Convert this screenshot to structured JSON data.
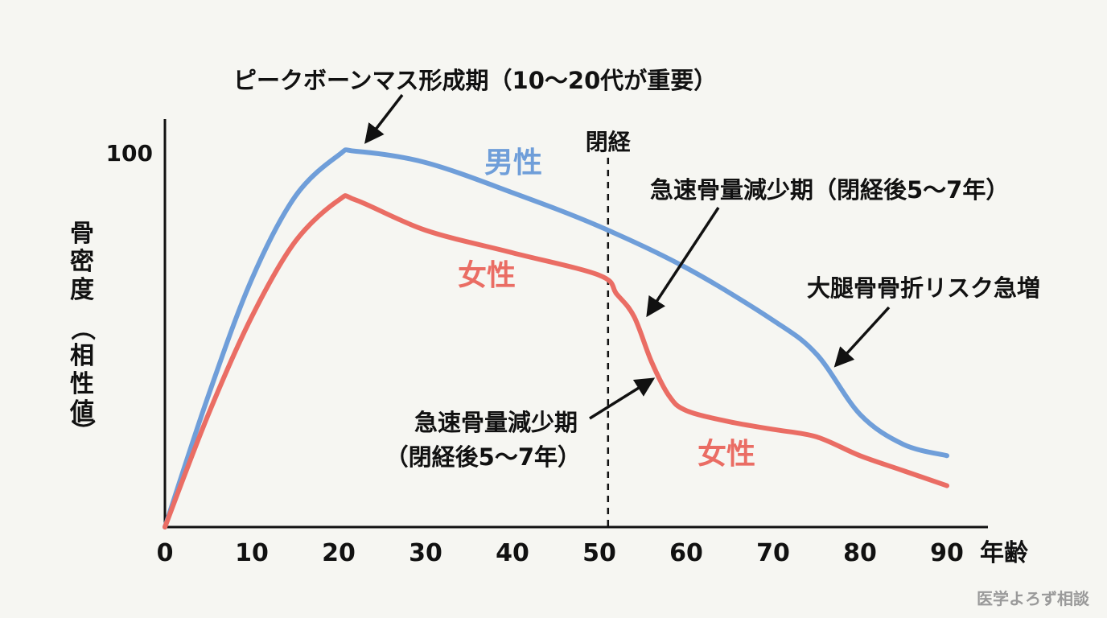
{
  "chart_data": {
    "type": "line",
    "title": "",
    "xlabel": "年齢",
    "ylabel": "骨密度（相性値）",
    "xlim": [
      0,
      90
    ],
    "ylim": [
      0,
      100
    ],
    "x_ticks": [
      "0",
      "10",
      "20",
      "30",
      "40",
      "50",
      "60",
      "70",
      "80",
      "90"
    ],
    "y_ticks": [
      "100"
    ],
    "grid": false,
    "series": [
      {
        "name": "男性",
        "color": "#6f9ed9",
        "points": [
          [
            0,
            0
          ],
          [
            5,
            35
          ],
          [
            10,
            66
          ],
          [
            15,
            88
          ],
          [
            20,
            99
          ],
          [
            22,
            100
          ],
          [
            30,
            97
          ],
          [
            40,
            89
          ],
          [
            50,
            80
          ],
          [
            60,
            69
          ],
          [
            70,
            55
          ],
          [
            75,
            46
          ],
          [
            80,
            30
          ],
          [
            85,
            22
          ],
          [
            90,
            19
          ]
        ]
      },
      {
        "name": "女性",
        "color": "#ea6d64",
        "points": [
          [
            0,
            0
          ],
          [
            5,
            30
          ],
          [
            10,
            56
          ],
          [
            15,
            76
          ],
          [
            20,
            87
          ],
          [
            22,
            87
          ],
          [
            30,
            79
          ],
          [
            40,
            73
          ],
          [
            50,
            67
          ],
          [
            52,
            62
          ],
          [
            54,
            56
          ],
          [
            56,
            44
          ],
          [
            58,
            35
          ],
          [
            60,
            31
          ],
          [
            65,
            28
          ],
          [
            70,
            26
          ],
          [
            75,
            24
          ],
          [
            80,
            19
          ],
          [
            85,
            15
          ],
          [
            90,
            11
          ]
        ]
      }
    ],
    "menopause": {
      "x": 51,
      "label": "閉経"
    },
    "annotations": {
      "peak": "ピークボーンマス形成期（10〜20代が重要）",
      "rapid_loss_top": "急速骨量減少期（閉経後5〜7年）",
      "rapid_loss_bottom_line1": "急速骨量減少期",
      "rapid_loss_bottom_line2": "（閉経後5〜7年）",
      "hip_fracture": "大腿骨骨折リスク急増",
      "male_label": "男性",
      "female_label_1": "女性",
      "female_label_2": "女性"
    },
    "ylabel_chars": [
      "骨",
      "密",
      "度",
      "（",
      "相",
      "性",
      "値",
      "）"
    ]
  },
  "watermark": "医学よろず相談",
  "colors": {
    "axis": "#111111",
    "text": "#111111",
    "watermark": "#9a9a9a"
  }
}
